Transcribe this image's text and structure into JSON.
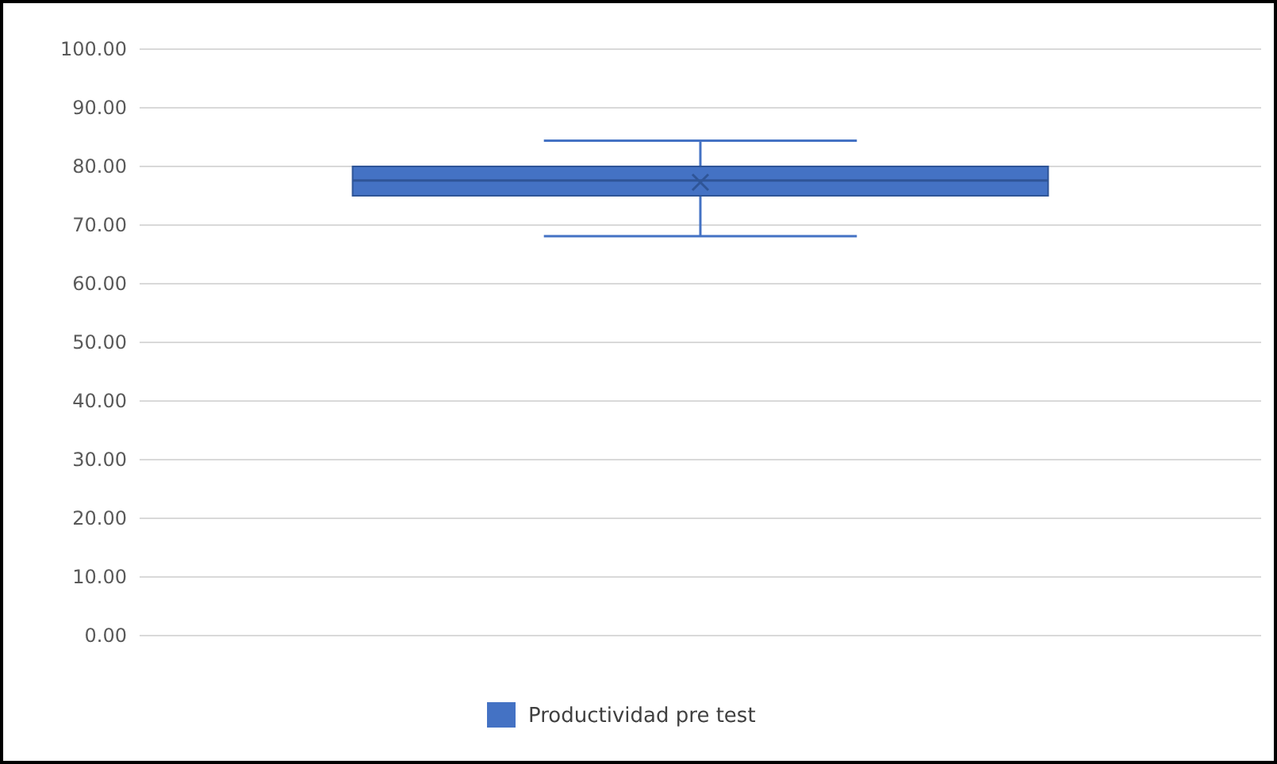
{
  "chart_data": {
    "type": "box",
    "categories": [
      null
    ],
    "series": [
      {
        "name": "Productividad pre test",
        "color": "#4472c4",
        "boxes": [
          {
            "low": 68.1,
            "q1": 75.0,
            "median": 77.6,
            "q3": 80.0,
            "high": 84.4,
            "mean": 77.3
          }
        ]
      }
    ],
    "ylim": [
      0,
      100
    ],
    "yticks": [
      {
        "value": 0,
        "label": "0.00"
      },
      {
        "value": 10,
        "label": "10.00"
      },
      {
        "value": 20,
        "label": "20.00"
      },
      {
        "value": 30,
        "label": "30.00"
      },
      {
        "value": 40,
        "label": "40.00"
      },
      {
        "value": 50,
        "label": "50.00"
      },
      {
        "value": 60,
        "label": "60.00"
      },
      {
        "value": 70,
        "label": "70.00"
      },
      {
        "value": 80,
        "label": "80.00"
      },
      {
        "value": 90,
        "label": "90.00"
      },
      {
        "value": 100,
        "label": "100.00"
      }
    ],
    "grid": "y",
    "legend": "bottom"
  }
}
